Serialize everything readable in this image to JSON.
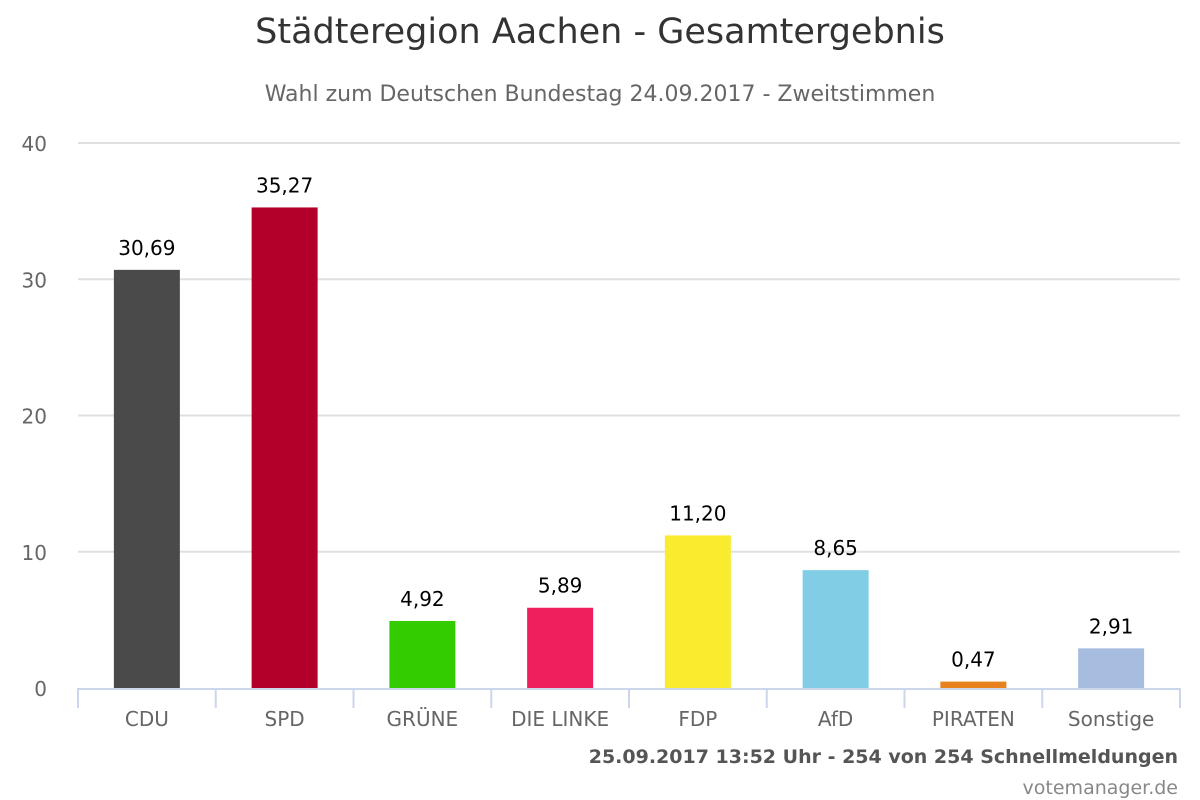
{
  "chart_data": {
    "type": "bar",
    "title": "Städteregion Aachen - Gesamtergebnis",
    "subtitle": "Wahl zum Deutschen Bundestag 24.09.2017 - Zweitstimmen",
    "categories": [
      "CDU",
      "SPD",
      "GRÜNE",
      "DIE LINKE",
      "FDP",
      "AfD",
      "PIRATEN",
      "Sonstige"
    ],
    "values": [
      30.69,
      35.27,
      4.92,
      5.89,
      11.2,
      8.65,
      0.47,
      2.91
    ],
    "value_labels": [
      "30,69",
      "35,27",
      "4,92",
      "5,89",
      "11,20",
      "8,65",
      "0,47",
      "2,91"
    ],
    "colors": [
      "#4a4a4a",
      "#b3002a",
      "#33cc00",
      "#ee1f5c",
      "#f9eb2e",
      "#82cde6",
      "#e8821e",
      "#a7bde0"
    ],
    "yticks": [
      "0",
      "10",
      "20",
      "30",
      "40"
    ],
    "ylim": [
      0,
      40
    ],
    "xlabel": "",
    "ylabel": "",
    "grid": true,
    "legend": "none"
  },
  "footer": "25.09.2017 13:52 Uhr - 254 von 254 Schnellmeldungen",
  "credit": "votemanager.de"
}
